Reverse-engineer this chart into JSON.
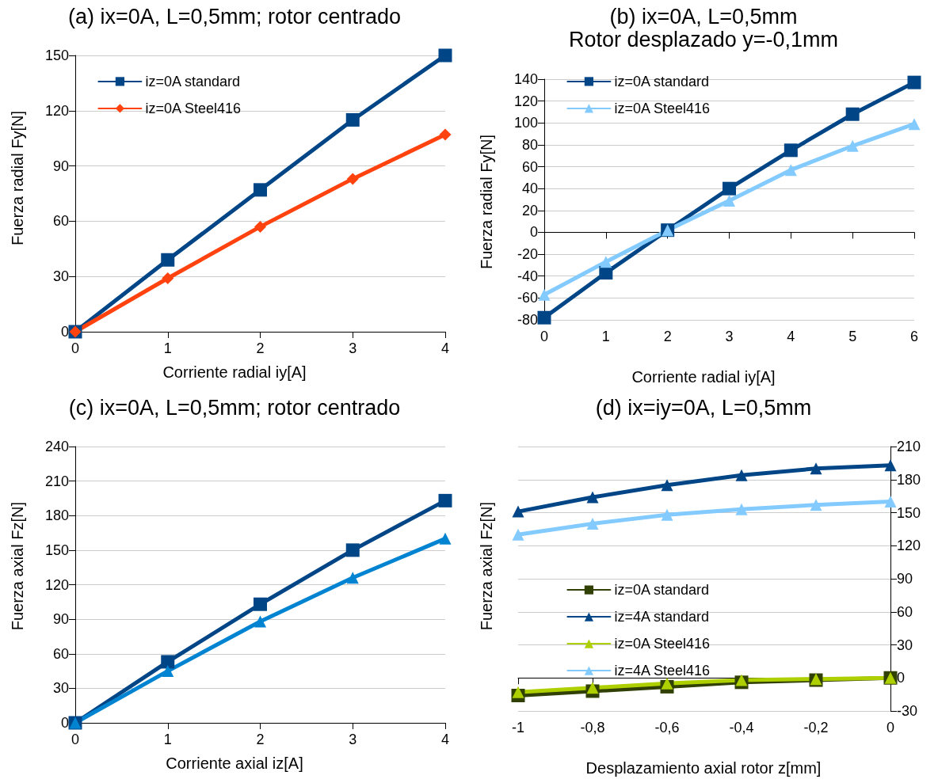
{
  "chart_data": [
    {
      "type": "line",
      "title": "(a) ix=0A, L=0,5mm; rotor centrado",
      "xlabel": "Corriente radial iy[A]",
      "ylabel": "Fuerza radial Fy[N]",
      "x": [
        0,
        1,
        2,
        3,
        4
      ],
      "xlim": [
        0,
        4
      ],
      "xticks": [
        0,
        1,
        2,
        3,
        4
      ],
      "ylim": [
        0,
        150
      ],
      "yticks": [
        0,
        30,
        60,
        90,
        120,
        150
      ],
      "grid": "y",
      "legend": "top left",
      "series": [
        {
          "name": "iz=0A standard",
          "color": "#004586",
          "marker": "square",
          "values": [
            0,
            39,
            77,
            115,
            150
          ]
        },
        {
          "name": "iz=0A Steel416",
          "color": "#ff420e",
          "marker": "diamond",
          "values": [
            0,
            29,
            57,
            83,
            107
          ]
        }
      ]
    },
    {
      "type": "line",
      "title": "(b) ix=0A, L=0,5mm",
      "subtitle": "Rotor desplazado y=-0,1mm",
      "xlabel": "Corriente radial iy[A]",
      "ylabel": "Fuerza radial Fy[N]",
      "x": [
        0,
        1,
        2,
        3,
        4,
        5,
        6
      ],
      "xlim": [
        0,
        6
      ],
      "xticks": [
        0,
        1,
        2,
        3,
        4,
        5,
        6
      ],
      "ylim": [
        -80,
        140
      ],
      "yticks": [
        -80,
        -60,
        -40,
        -20,
        0,
        20,
        40,
        60,
        80,
        100,
        120,
        140
      ],
      "grid": "y",
      "legend": "top left",
      "series": [
        {
          "name": "iz=0A standard",
          "color": "#004586",
          "marker": "square",
          "values": [
            -78,
            -37,
            2,
            40,
            75,
            108,
            137
          ]
        },
        {
          "name": "iz=0A Steel416",
          "color": "#83caff",
          "marker": "triangle",
          "values": [
            -57,
            -27,
            2,
            29,
            57,
            79,
            99
          ]
        }
      ]
    },
    {
      "type": "line",
      "title": "(c) ix=0A, L=0,5mm; rotor centrado",
      "xlabel": "Corriente axial iz[A]",
      "ylabel": "Fuerza axial Fz[N]",
      "x": [
        0,
        1,
        2,
        3,
        4
      ],
      "xlim": [
        0,
        4
      ],
      "xticks": [
        0,
        1,
        2,
        3,
        4
      ],
      "ylim": [
        0,
        240
      ],
      "yticks": [
        0,
        30,
        60,
        90,
        120,
        150,
        180,
        210,
        240
      ],
      "grid": "y",
      "series": [
        {
          "color": "#004586",
          "marker": "square",
          "values": [
            0,
            53,
            103,
            150,
            193
          ]
        },
        {
          "color": "#0084d1",
          "marker": "triangle",
          "values": [
            0,
            45,
            88,
            126,
            160
          ]
        }
      ]
    },
    {
      "type": "line",
      "title": "(d) ix=iy=0A, L=0,5mm",
      "xlabel": "Desplazamiento axial rotor z[mm]",
      "ylabel": "Fuerza axial Fz[N]",
      "x": [
        -1,
        -0.8,
        -0.6,
        -0.4,
        -0.2,
        0
      ],
      "xlim": [
        -1,
        0
      ],
      "xticks": [
        -1,
        {
          "value": -0.8,
          "label": "-0,8"
        },
        {
          "value": -0.6,
          "label": "-0,6"
        },
        {
          "value": -0.4,
          "label": "-0,4"
        },
        {
          "value": -0.2,
          "label": "-0,2"
        },
        0
      ],
      "ylim": [
        -30,
        210
      ],
      "yticks": [
        -30,
        0,
        30,
        60,
        90,
        120,
        150,
        180,
        210
      ],
      "grid": "y",
      "legend": "left",
      "series": [
        {
          "name": "iz=0A standard",
          "color": "#314004",
          "marker": "square",
          "values": [
            -16,
            -12,
            -8,
            -4,
            -2,
            0
          ]
        },
        {
          "name": "iz=4A standard",
          "color": "#004586",
          "marker": "triangle",
          "values": [
            151,
            164,
            175,
            184,
            190,
            193
          ]
        },
        {
          "name": "iz=0A Steel416",
          "color": "#aecf00",
          "marker": "triangle",
          "values": [
            -13,
            -9,
            -5,
            -2,
            -1,
            0
          ]
        },
        {
          "name": "iz=4A Steel416",
          "color": "#83caff",
          "marker": "triangle",
          "values": [
            130,
            140,
            148,
            153,
            157,
            160
          ]
        }
      ]
    }
  ]
}
